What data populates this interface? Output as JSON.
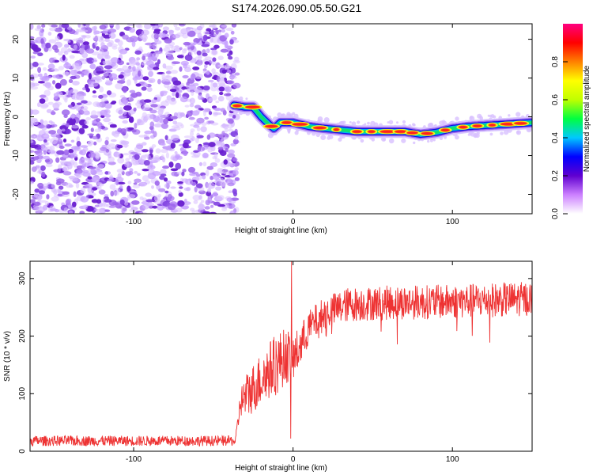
{
  "title": "S174.2026.090.05.50.G21",
  "chart_data": [
    {
      "type": "heatmap",
      "xlabel": "Height of straight line (km)",
      "ylabel": "Frequency (Hz)",
      "xlim": [
        -165,
        150
      ],
      "ylim": [
        -25,
        24
      ],
      "xticks": [
        -100,
        0,
        100
      ],
      "yticks": [
        -20,
        -10,
        0,
        10,
        20
      ],
      "noise_region_x": [
        -165,
        -37
      ],
      "ridge": [
        {
          "x": -37,
          "y": 3
        },
        {
          "x": -30,
          "y": 2.5
        },
        {
          "x": -25,
          "y": 2.5
        },
        {
          "x": -20,
          "y": 0
        },
        {
          "x": -15,
          "y": -2
        },
        {
          "x": -12,
          "y": -3
        },
        {
          "x": -8,
          "y": -1.5
        },
        {
          "x": 0,
          "y": -1.5
        },
        {
          "x": 5,
          "y": -2
        },
        {
          "x": 10,
          "y": -2.5
        },
        {
          "x": 20,
          "y": -3
        },
        {
          "x": 40,
          "y": -3.8
        },
        {
          "x": 70,
          "y": -3.8
        },
        {
          "x": 80,
          "y": -4.5
        },
        {
          "x": 90,
          "y": -4
        },
        {
          "x": 100,
          "y": -3
        },
        {
          "x": 110,
          "y": -2.5
        },
        {
          "x": 130,
          "y": -2
        },
        {
          "x": 150,
          "y": -1.5
        }
      ],
      "colorbar": {
        "label": "Normalized spectral amplitude",
        "range": [
          0,
          1
        ],
        "ticks": [
          "0.0",
          "0.2",
          "0.4",
          "0.6",
          "0.8"
        ],
        "colors": [
          "#ffffff",
          "#cc80ff",
          "#6000d0",
          "#0000ff",
          "#00c8ff",
          "#00ff40",
          "#c0ff00",
          "#ffff00",
          "#ff8000",
          "#ff0000",
          "#ff0080"
        ]
      }
    },
    {
      "type": "line",
      "xlabel": "Height of straight line (km)",
      "ylabel": "SNR (10 * v/v)",
      "xlim": [
        -165,
        150
      ],
      "ylim": [
        0,
        330
      ],
      "xticks": [
        -100,
        0,
        100
      ],
      "yticks": [
        0,
        100,
        200,
        300
      ],
      "color": "#ee3333",
      "envelope": [
        {
          "x": -165,
          "y": 18
        },
        {
          "x": -120,
          "y": 18
        },
        {
          "x": -60,
          "y": 18
        },
        {
          "x": -36,
          "y": 18
        },
        {
          "x": -33,
          "y": 85
        },
        {
          "x": -25,
          "y": 110
        },
        {
          "x": -15,
          "y": 140
        },
        {
          "x": -5,
          "y": 165
        },
        {
          "x": -2,
          "y": 165
        },
        {
          "x": 0,
          "y": 160
        },
        {
          "x": 5,
          "y": 185
        },
        {
          "x": 10,
          "y": 215
        },
        {
          "x": 20,
          "y": 240
        },
        {
          "x": 35,
          "y": 255
        },
        {
          "x": 60,
          "y": 258
        },
        {
          "x": 100,
          "y": 260
        },
        {
          "x": 150,
          "y": 265
        }
      ],
      "noise_amplitude": [
        {
          "x": -165,
          "a": 9
        },
        {
          "x": -36,
          "a": 9
        },
        {
          "x": -30,
          "a": 40
        },
        {
          "x": -10,
          "a": 55
        },
        {
          "x": 10,
          "a": 30
        },
        {
          "x": 150,
          "a": 30
        }
      ],
      "spikes": [
        {
          "x": -1,
          "y": 330
        },
        {
          "x": -1.5,
          "y": 22
        }
      ]
    }
  ]
}
